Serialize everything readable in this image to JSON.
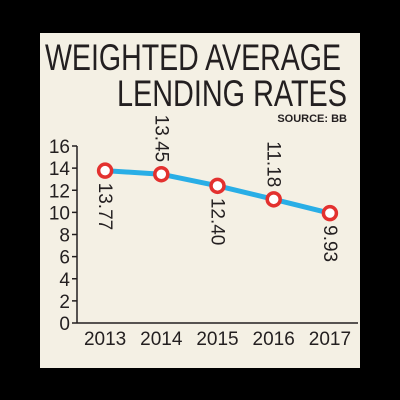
{
  "chart_data": {
    "type": "line",
    "title": "WEIGHTED AVERAGE",
    "subtitle": "LENDING RATES",
    "source": "SOURCE: BB",
    "categories": [
      "2013",
      "2014",
      "2015",
      "2016",
      "2017"
    ],
    "series": [
      {
        "name": "Lending rate",
        "color": "#29aee6",
        "marker_color": "#e3312f",
        "values": [
          13.77,
          13.45,
          12.4,
          11.18,
          9.93
        ],
        "value_labels": [
          "13.77",
          "13.45",
          "12.40",
          "11.18",
          "9.93"
        ]
      }
    ],
    "ylim": [
      0,
      16
    ],
    "yticks": [
      0,
      2,
      4,
      6,
      8,
      10,
      12,
      14,
      16
    ]
  }
}
